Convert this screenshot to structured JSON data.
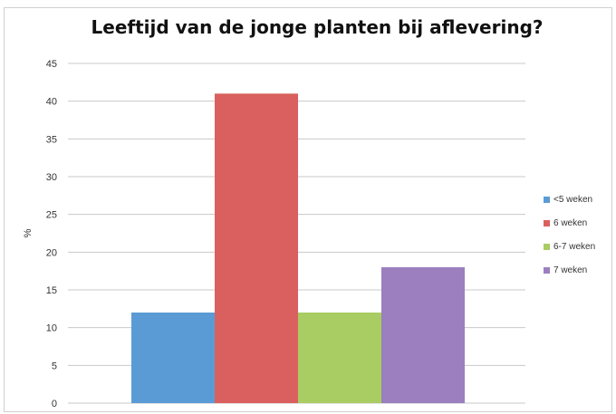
{
  "chart_data": {
    "type": "bar",
    "title": "Leeftijd van de jonge planten bij aflevering?",
    "xlabel": "",
    "ylabel": "%",
    "ylim": [
      0,
      45
    ],
    "yticks": [
      "0",
      "5",
      "10",
      "15",
      "20",
      "25",
      "30",
      "35",
      "40",
      "45"
    ],
    "grid": true,
    "legend_position": "right",
    "series": [
      {
        "name": "<5 weken",
        "value": 12,
        "color": "#5b9bd5"
      },
      {
        "name": "6 weken",
        "value": 41,
        "color": "#d9605e"
      },
      {
        "name": "6-7 weken",
        "value": 12,
        "color": "#a9cc63"
      },
      {
        "name": "7 weken",
        "value": 18,
        "color": "#9b7fbf"
      }
    ]
  }
}
